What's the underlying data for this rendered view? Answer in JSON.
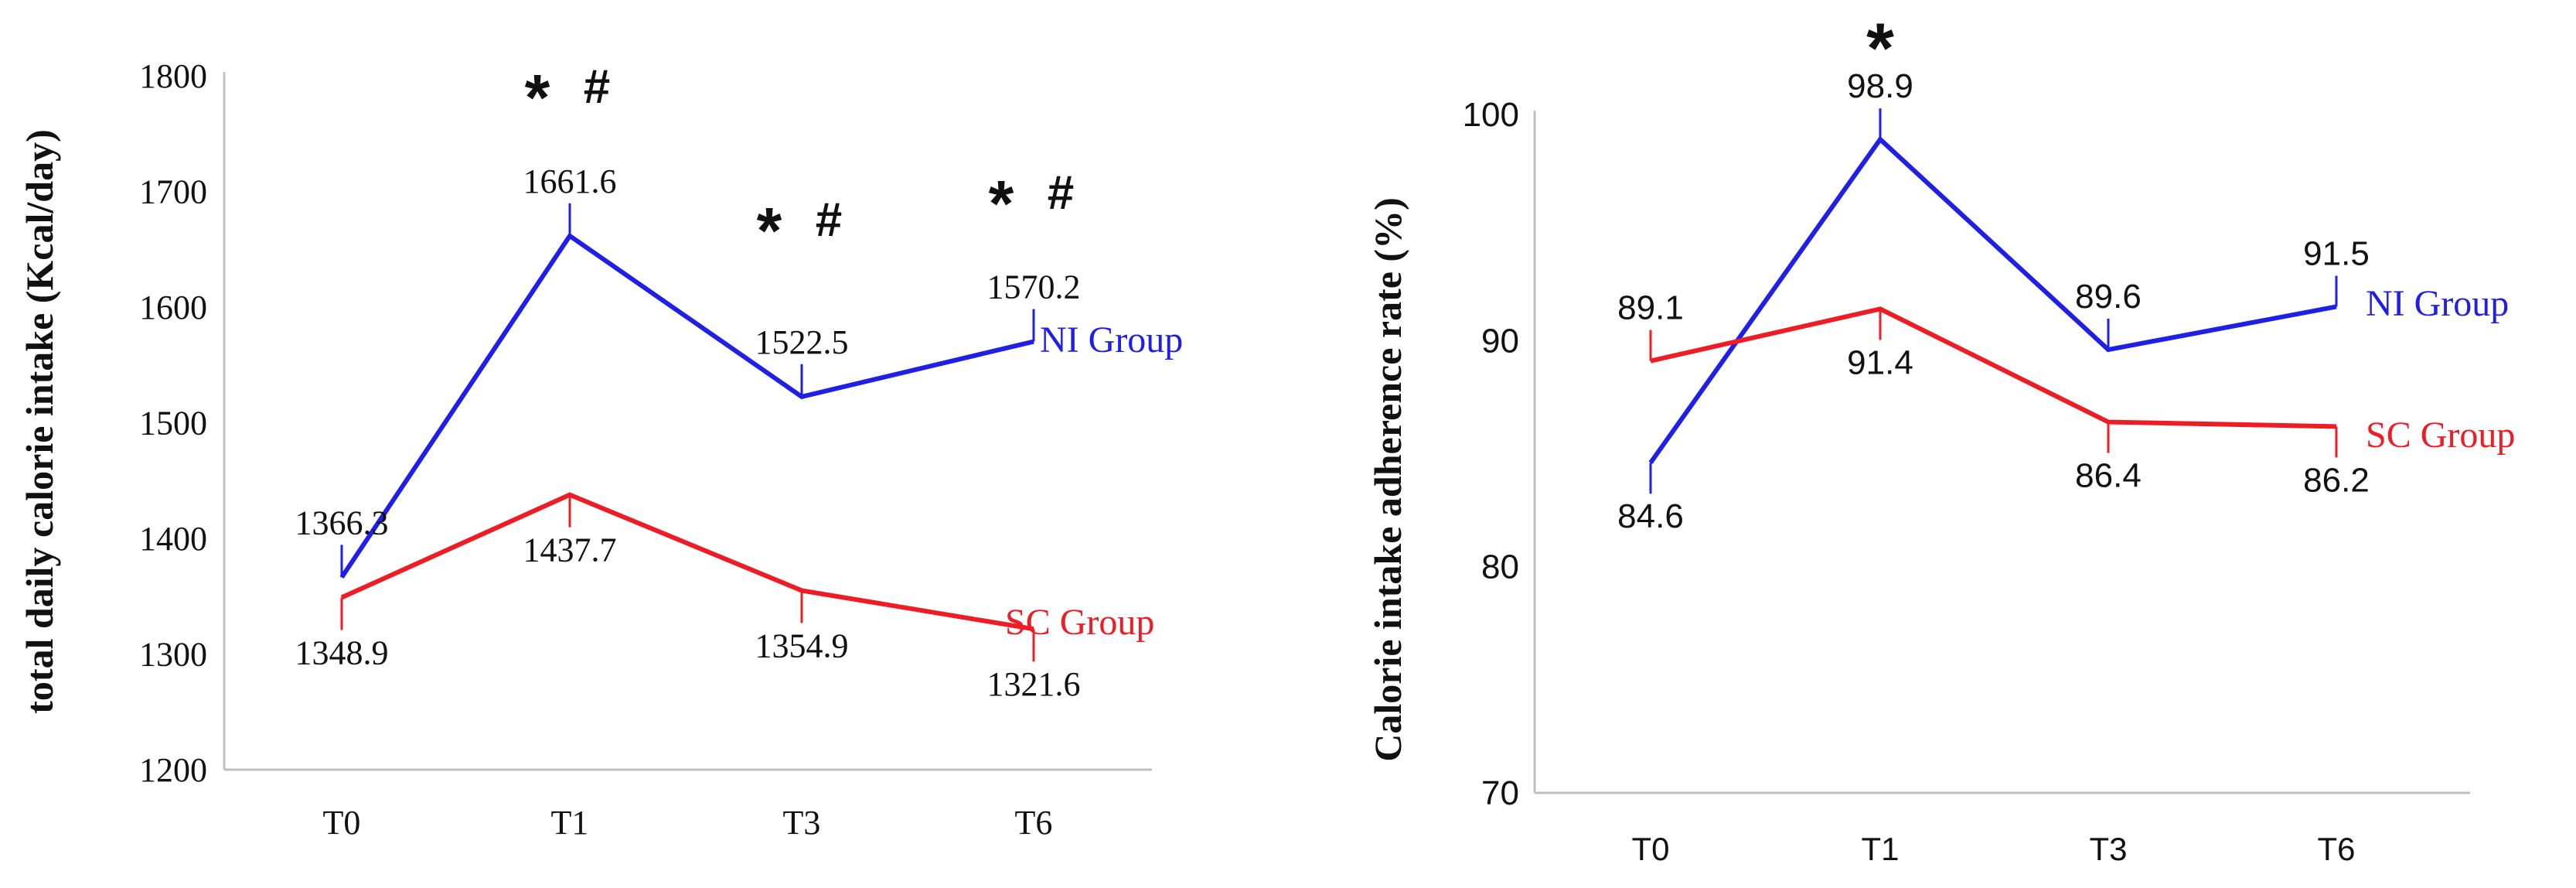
{
  "colors": {
    "ni": "#1f1fe6",
    "sc": "#ee1c24",
    "axis": "#bfbfbf",
    "text": "#111111"
  },
  "chart_data": [
    {
      "type": "line",
      "ylabel": "total daily calorie intake (Kcal/day)",
      "categories": [
        "T0",
        "T1",
        "T3",
        "T6"
      ],
      "ylim": [
        1200,
        1800
      ],
      "yticks": [
        1200,
        1300,
        1400,
        1500,
        1600,
        1700,
        1800
      ],
      "series": [
        {
          "name": "NI Group",
          "values": [
            1366.3,
            1661.6,
            1522.5,
            1570.2
          ],
          "labels": [
            "1366.3",
            "1661.6",
            "1522.5",
            "1570.2"
          ]
        },
        {
          "name": "SC Group",
          "values": [
            1348.9,
            1437.7,
            1354.9,
            1321.6
          ],
          "labels": [
            "1348.9",
            "1437.7",
            "1354.9",
            "1321.6"
          ]
        }
      ],
      "significance": [
        "",
        "* #",
        "* #",
        "* #"
      ]
    },
    {
      "type": "line",
      "ylabel": "Calorie intake adherence rate (%)",
      "categories": [
        "T0",
        "T1",
        "T3",
        "T6"
      ],
      "ylim": [
        70,
        100
      ],
      "yticks": [
        70,
        80,
        90,
        100
      ],
      "series": [
        {
          "name": "NI Group",
          "values": [
            84.6,
            98.9,
            89.6,
            91.5
          ],
          "labels": [
            "84.6",
            "98.9",
            "89.6",
            "91.5"
          ]
        },
        {
          "name": "SC Group",
          "values": [
            89.1,
            91.4,
            86.4,
            86.2
          ],
          "labels": [
            "89.1",
            "91.4",
            "86.4",
            "86.2"
          ]
        }
      ],
      "significance": [
        "",
        "*",
        "",
        ""
      ]
    }
  ]
}
